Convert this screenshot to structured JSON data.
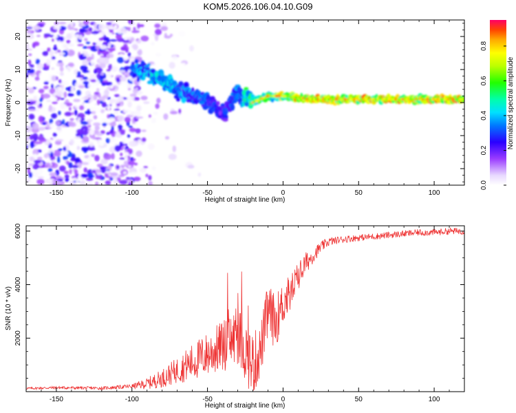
{
  "title": "KOM5.2026.106.04.10.G09",
  "chart_data": [
    {
      "type": "heatmap",
      "xlabel": "Height of straight line (km)",
      "ylabel": "Frequency (Hz)",
      "xlim": [
        -170,
        120
      ],
      "ylim": [
        -25,
        25
      ],
      "x_ticks": [
        -150,
        -100,
        -50,
        0,
        50,
        100
      ],
      "y_ticks": [
        -20,
        -10,
        0,
        10,
        20
      ],
      "colorbar": {
        "label": "Normalized spectral amplitude",
        "range": [
          0.0,
          0.95
        ],
        "ticks": [
          0.0,
          0.2,
          0.4,
          0.6,
          0.8
        ],
        "tick_labels": [
          "0.0",
          "0.2",
          "0.4",
          "0.6",
          "0.8"
        ]
      },
      "ridge": {
        "description": "Doppler ridge: noisy scatter below -100 km, descending echo ridge from ~+10 Hz at -100 km to ~0 Hz near -20 km, steady line near +1 Hz from -20 to 120 km",
        "x": [
          -100,
          -90,
          -80,
          -70,
          -60,
          -50,
          -40,
          -30,
          -20,
          -10,
          0,
          20,
          50,
          80,
          120
        ],
        "frequency_hz": [
          10,
          9,
          7,
          4,
          2,
          1,
          -4,
          3,
          0,
          2,
          2,
          1,
          1,
          1,
          1
        ],
        "peak_amplitude": [
          0.4,
          0.45,
          0.5,
          0.45,
          0.4,
          0.35,
          0.3,
          0.4,
          0.7,
          0.6,
          0.85,
          0.9,
          0.9,
          0.9,
          0.9
        ]
      }
    },
    {
      "type": "line",
      "xlabel": "Height of straight line (km)",
      "ylabel": "SNR (10 * v/v)",
      "xlim": [
        -170,
        120
      ],
      "ylim": [
        0,
        6200
      ],
      "x_ticks": [
        -150,
        -100,
        -50,
        0,
        50,
        100
      ],
      "y_ticks": [
        2000,
        4000,
        6000
      ],
      "series": [
        {
          "name": "SNR",
          "color": "#ee3333",
          "x": [
            -170,
            -150,
            -120,
            -100,
            -90,
            -80,
            -70,
            -60,
            -50,
            -40,
            -30,
            -20,
            -15,
            -10,
            -5,
            0,
            5,
            10,
            15,
            20,
            25,
            30,
            35,
            40,
            50,
            60,
            70,
            80,
            90,
            100,
            110,
            120
          ],
          "y": [
            120,
            150,
            130,
            200,
            300,
            500,
            800,
            1100,
            1400,
            1700,
            2100,
            1000,
            1500,
            3000,
            2600,
            3300,
            3700,
            4300,
            4800,
            5100,
            5400,
            5600,
            5650,
            5700,
            5750,
            5800,
            5850,
            5900,
            5950,
            5950,
            6000,
            6000
          ],
          "noise": [
            30,
            40,
            40,
            60,
            150,
            250,
            350,
            500,
            600,
            700,
            800,
            900,
            700,
            800,
            700,
            600,
            500,
            400,
            300,
            200,
            150,
            120,
            100,
            100,
            90,
            90,
            90,
            90,
            90,
            90,
            90,
            90
          ]
        }
      ]
    }
  ]
}
